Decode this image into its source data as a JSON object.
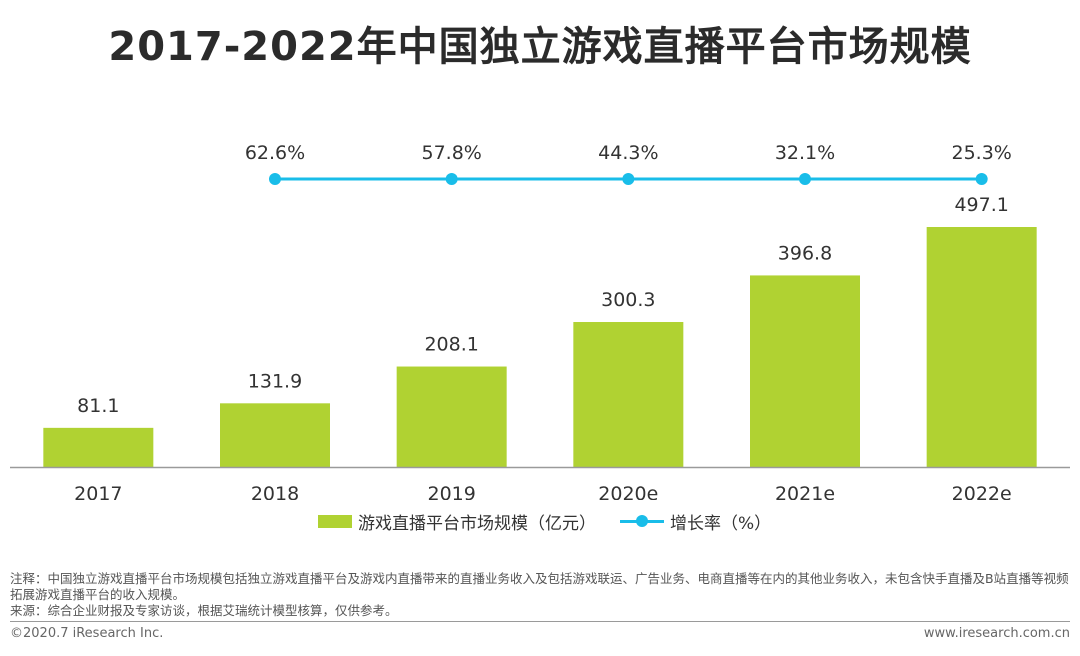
{
  "title": "2017-2022年中国独立游戏直播平台市场规模",
  "colors": {
    "bar": "#b0d232",
    "line": "#19bde9",
    "axis": "#9a9a9a"
  },
  "chart_data": {
    "type": "bar",
    "categories": [
      "2017",
      "2018",
      "2019",
      "2020e",
      "2021e",
      "2022e"
    ],
    "series": [
      {
        "name": "游戏直播平台市场规模（亿元）",
        "type": "bar",
        "values": [
          81.1,
          131.9,
          208.1,
          300.3,
          396.8,
          497.1
        ]
      },
      {
        "name": "增长率（%）",
        "type": "line",
        "values": [
          null,
          62.6,
          57.8,
          44.3,
          32.1,
          25.3
        ],
        "labels": [
          "",
          "62.6%",
          "57.8%",
          "44.3%",
          "32.1%",
          "25.3%"
        ]
      }
    ],
    "legend_position": "bottom",
    "grid": false
  },
  "notes": {
    "line1": "注释：中国独立游戏直播平台市场规模包括独立游戏直播平台及游戏内直播带来的直播业务收入及包括游戏联运、广告业务、电商直播等在内的其他业务收入，未包含快手直播及B站直播等视频拓展游戏直播平台的收入规模。",
    "line2": "来源：综合企业财报及专家访谈，根据艾瑞统计模型核算，仅供参考。"
  },
  "footer": {
    "copyright": "©2020.7 iResearch Inc.",
    "website": "www.iresearch.com.cn"
  }
}
